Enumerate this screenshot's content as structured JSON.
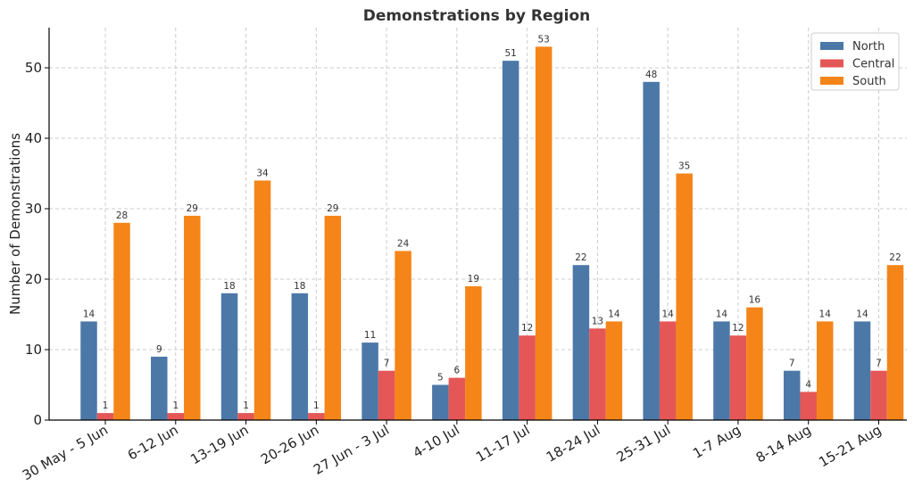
{
  "chart_data": {
    "type": "bar",
    "title": "Demonstrations by Region",
    "xlabel": "",
    "ylabel": "Number of Demonstrations",
    "categories": [
      "30 May - 5 Jun",
      "6-12 Jun",
      "13-19 Jun",
      "20-26 Jun",
      "27 Jun - 3 Jul",
      "4-10 Jul",
      "11-17 Jul",
      "18-24 Jul",
      "25-31 Jul",
      "1-7 Aug",
      "8-14 Aug",
      "15-21 Aug"
    ],
    "series": [
      {
        "name": "North",
        "color": "#4c78a8",
        "values": [
          14,
          9,
          18,
          18,
          11,
          5,
          51,
          22,
          48,
          14,
          7,
          14
        ]
      },
      {
        "name": "Central",
        "color": "#e45756",
        "values": [
          1,
          1,
          1,
          1,
          7,
          6,
          12,
          13,
          14,
          12,
          4,
          7
        ]
      },
      {
        "name": "South",
        "color": "#f58518",
        "values": [
          28,
          29,
          34,
          29,
          24,
          19,
          53,
          14,
          35,
          16,
          14,
          22
        ]
      }
    ],
    "ylim": [
      0,
      55.7
    ],
    "yticks": [
      0,
      10,
      20,
      30,
      40,
      50
    ],
    "grid": true,
    "legend": "top-right"
  }
}
